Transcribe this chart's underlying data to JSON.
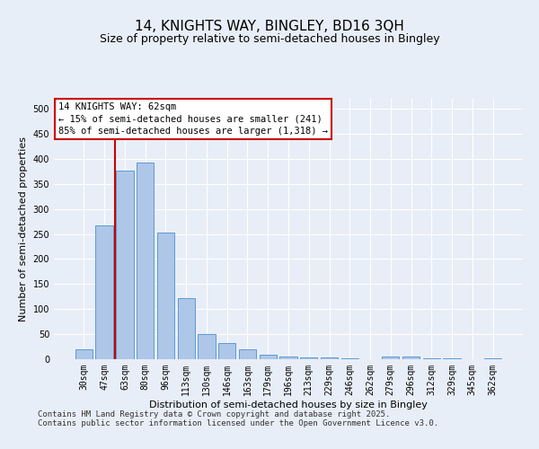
{
  "title": "14, KNIGHTS WAY, BINGLEY, BD16 3QH",
  "subtitle": "Size of property relative to semi-detached houses in Bingley",
  "xlabel": "Distribution of semi-detached houses by size in Bingley",
  "ylabel": "Number of semi-detached properties",
  "categories": [
    "30sqm",
    "47sqm",
    "63sqm",
    "80sqm",
    "96sqm",
    "113sqm",
    "130sqm",
    "146sqm",
    "163sqm",
    "179sqm",
    "196sqm",
    "213sqm",
    "229sqm",
    "246sqm",
    "262sqm",
    "279sqm",
    "296sqm",
    "312sqm",
    "329sqm",
    "345sqm",
    "362sqm"
  ],
  "values": [
    20,
    268,
    377,
    393,
    253,
    122,
    50,
    33,
    20,
    9,
    5,
    3,
    3,
    2,
    0,
    5,
    5,
    2,
    1,
    0,
    2
  ],
  "bar_color": "#aec6e8",
  "bar_edge_color": "#5b9bd5",
  "vline_x": 1.5,
  "vline_color": "#cc0000",
  "annotation_text": "14 KNIGHTS WAY: 62sqm\n← 15% of semi-detached houses are smaller (241)\n85% of semi-detached houses are larger (1,318) →",
  "annotation_box_color": "#cc0000",
  "annotation_fill": "#ffffff",
  "ylim": [
    0,
    520
  ],
  "yticks": [
    0,
    50,
    100,
    150,
    200,
    250,
    300,
    350,
    400,
    450,
    500
  ],
  "footer_line1": "Contains HM Land Registry data © Crown copyright and database right 2025.",
  "footer_line2": "Contains public sector information licensed under the Open Government Licence v3.0.",
  "bg_color": "#e8eef7",
  "grid_color": "#ffffff",
  "title_fontsize": 11,
  "subtitle_fontsize": 9,
  "axis_label_fontsize": 8,
  "tick_fontsize": 7,
  "annotation_fontsize": 7.5,
  "footer_fontsize": 6.5
}
